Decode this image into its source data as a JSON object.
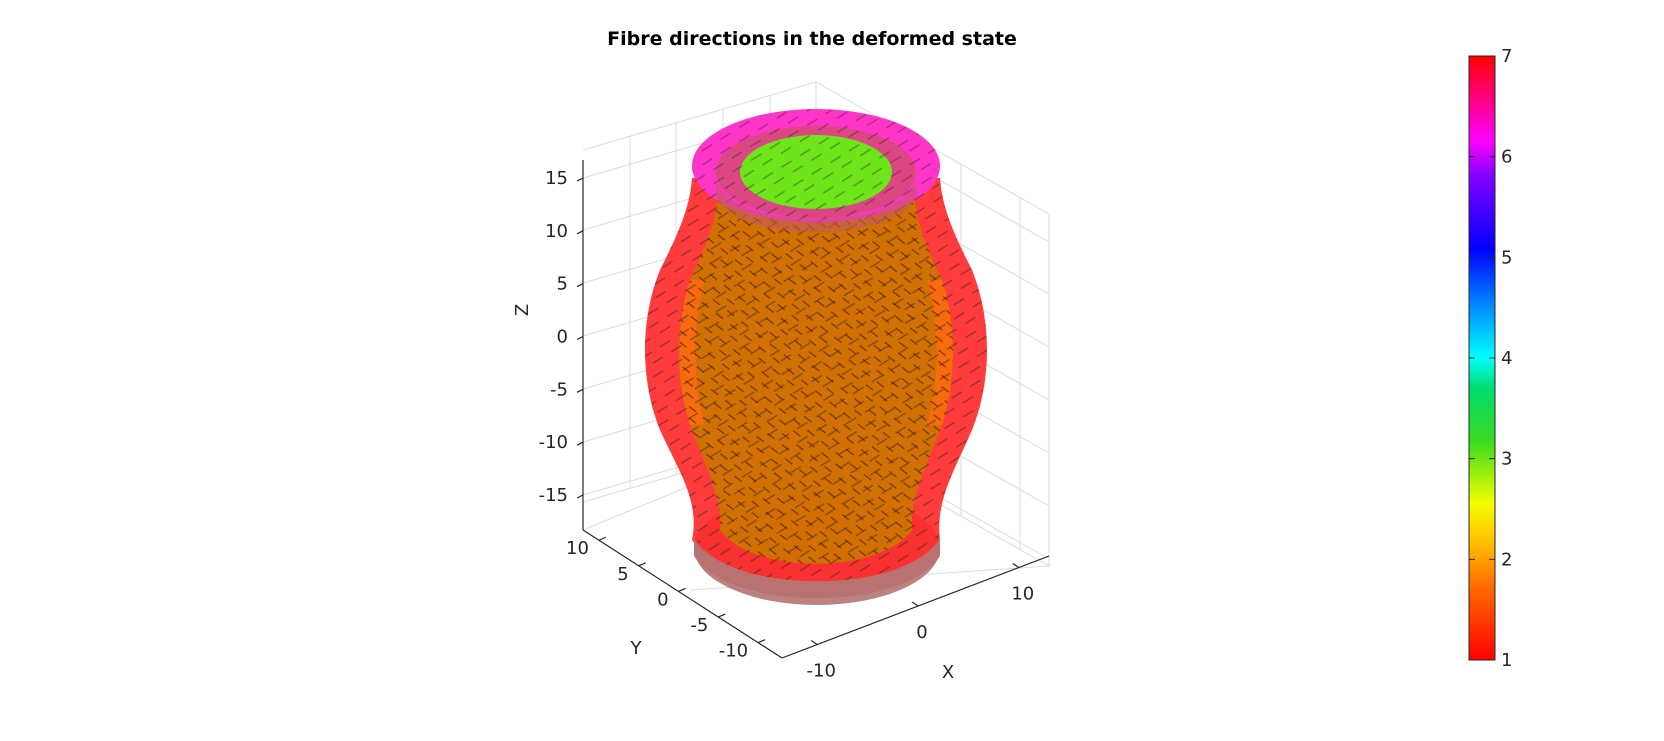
{
  "chart_data": {
    "type": "surface3d",
    "title": "Fibre directions in the deformed state",
    "axes": {
      "x": {
        "label": "X",
        "ticks": [
          -10,
          0,
          10
        ]
      },
      "y": {
        "label": "Y",
        "ticks": [
          10,
          5,
          0,
          -5,
          -10
        ]
      },
      "z": {
        "label": "Z",
        "ticks": [
          15,
          10,
          5,
          0,
          -5,
          -10,
          -15
        ],
        "range": [
          -18,
          17
        ]
      }
    },
    "grid": true,
    "colorbar": {
      "location": "right",
      "range": [
        1,
        7
      ],
      "ticks": [
        1,
        2,
        3,
        4,
        5,
        6,
        7
      ],
      "colormap": "gjet"
    },
    "surfaces": [
      {
        "part": "outer wall",
        "color": "#ff2a2a"
      },
      {
        "part": "inner wall",
        "color": "#d07400"
      },
      {
        "part": "top rim",
        "color": "#ff35c8"
      },
      {
        "part": "top face",
        "color": "#6ee41a"
      },
      {
        "part": "bottom face",
        "color": "#b87a7a"
      }
    ],
    "fibre_color": "#222222"
  }
}
